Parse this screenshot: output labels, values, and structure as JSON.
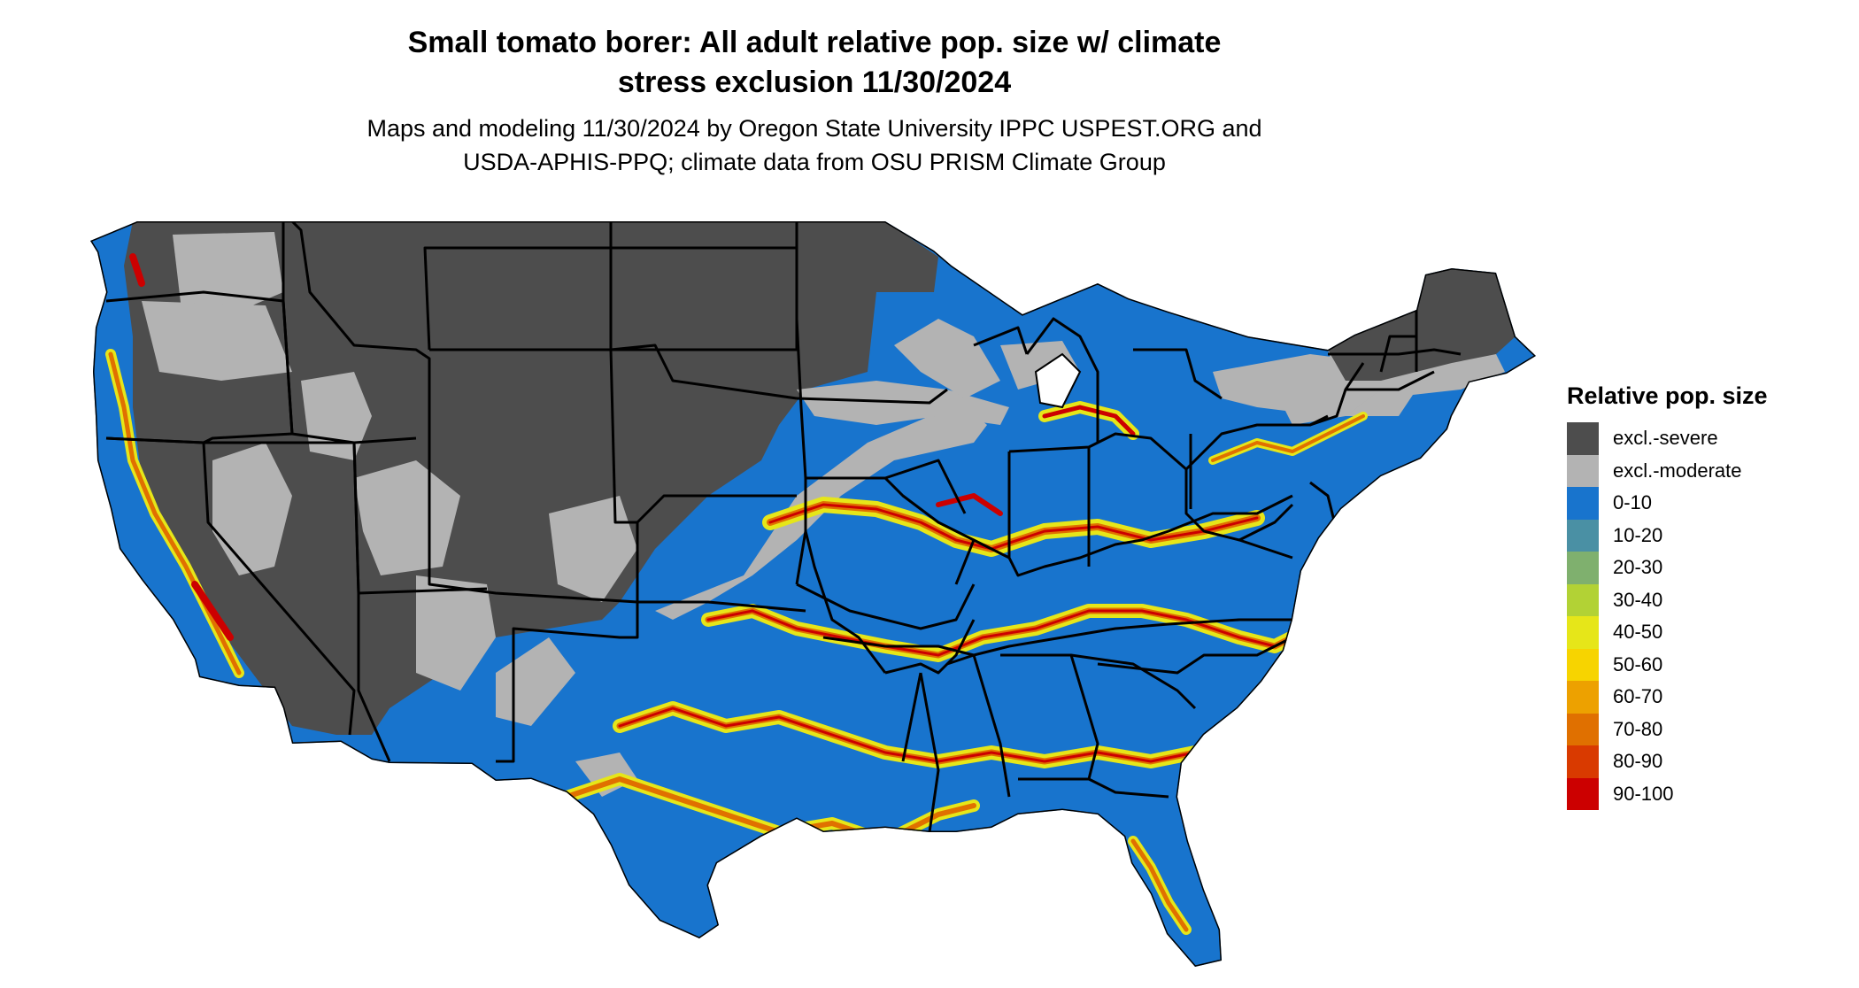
{
  "title_line1": "Small tomato borer: All adult relative pop. size w/ climate",
  "title_line2": "stress exclusion 11/30/2024",
  "subtitle_line1": "Maps and modeling 11/30/2024 by Oregon State University IPPC USPEST.ORG and",
  "subtitle_line2": "USDA-APHIS-PPQ; climate data from OSU PRISM Climate Group",
  "legend": {
    "title": "Relative pop. size",
    "items": [
      {
        "label": "excl.-severe",
        "color": "#4d4d4d"
      },
      {
        "label": "excl.-moderate",
        "color": "#b3b3b3"
      },
      {
        "label": "0-10",
        "color": "#1874cd"
      },
      {
        "label": "10-20",
        "color": "#4a90a4"
      },
      {
        "label": "20-30",
        "color": "#7fb06e"
      },
      {
        "label": "30-40",
        "color": "#b2d235"
      },
      {
        "label": "40-50",
        "color": "#e6e619"
      },
      {
        "label": "50-60",
        "color": "#f7d400"
      },
      {
        "label": "60-70",
        "color": "#eda100"
      },
      {
        "label": "70-80",
        "color": "#e07000"
      },
      {
        "label": "80-90",
        "color": "#d93a00"
      },
      {
        "label": "90-100",
        "color": "#cc0000"
      }
    ]
  }
}
